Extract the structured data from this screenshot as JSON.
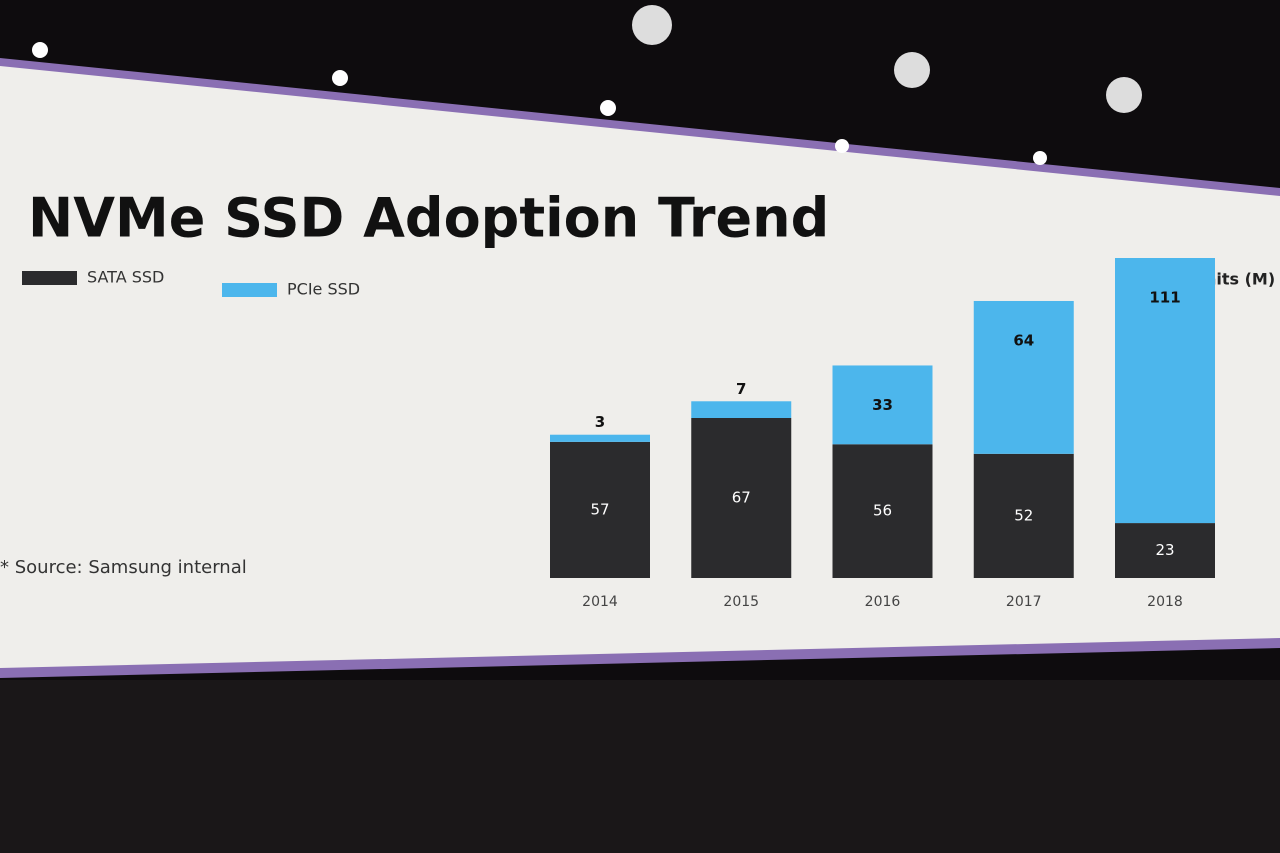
{
  "chart_data": {
    "type": "stacked-bar",
    "title": "NVMe SSD Adoption Trend",
    "unit_label": "Units (M)",
    "note": "* Source: Samsung internal",
    "categories": [
      "2014",
      "2015",
      "2016",
      "2017",
      "2018"
    ],
    "series": [
      {
        "name": "SATA SSD",
        "color": "#2b2b2d",
        "values": [
          57,
          67,
          56,
          52,
          23
        ]
      },
      {
        "name": "PCIe SSD",
        "color": "#4cb6ec",
        "values": [
          3,
          7,
          33,
          64,
          111
        ]
      }
    ]
  }
}
